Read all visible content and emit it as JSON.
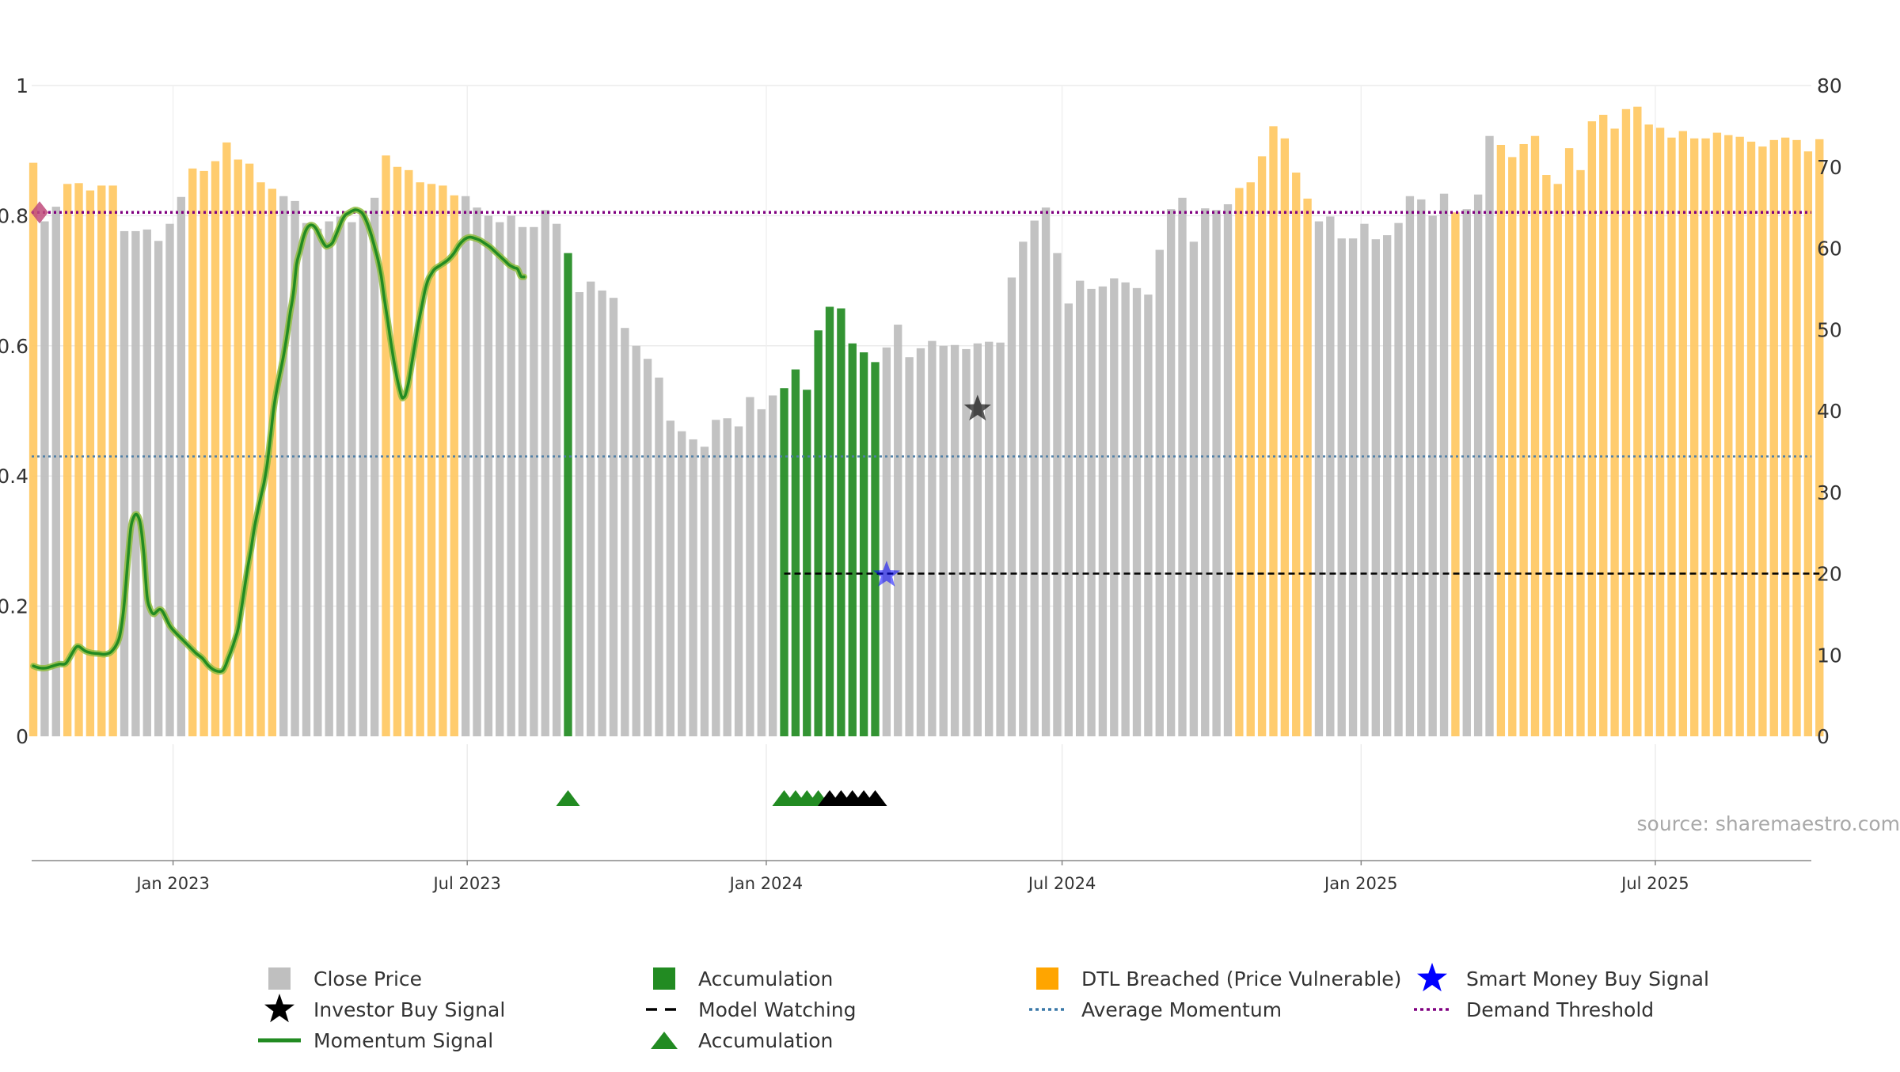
{
  "chart_data": {
    "type": "bar",
    "x_start": "2022-10-07",
    "x_interval_days": 7,
    "x_tick_labels": [
      {
        "date": "2023-01-01",
        "label": "Jan 2023"
      },
      {
        "date": "2023-07-01",
        "label": "Jul 2023"
      },
      {
        "date": "2024-01-01",
        "label": "Jan 2024"
      },
      {
        "date": "2024-07-01",
        "label": "Jul 2024"
      },
      {
        "date": "2025-01-01",
        "label": "Jan 2025"
      },
      {
        "date": "2025-07-01",
        "label": "Jul 2025"
      }
    ],
    "x_range": [
      "2022-10-06",
      "2025-10-05"
    ],
    "y_left_ticks": [
      "0",
      "0.2",
      "0.4",
      "0.6",
      "0.8",
      "1"
    ],
    "y_left_range": [
      0,
      1
    ],
    "y_right_ticks": [
      "0",
      "10",
      "20",
      "30",
      "40",
      "50",
      "60",
      "70",
      "80"
    ],
    "y_right_range": [
      0,
      80
    ],
    "grid": true,
    "average_momentum": 0.43,
    "demand_threshold": 0.805,
    "bars": {
      "values": [
        70.5,
        63.3,
        65.1,
        67.9,
        68.0,
        67.1,
        67.7,
        67.7,
        62.1,
        62.1,
        62.3,
        60.9,
        63.0,
        66.3,
        69.8,
        69.5,
        70.7,
        73.0,
        70.9,
        70.4,
        68.1,
        67.3,
        66.4,
        65.8,
        63.1,
        62.4,
        63.3,
        63.9,
        63.2,
        64.6,
        66.2,
        71.4,
        70.0,
        69.6,
        68.1,
        67.9,
        67.7,
        66.5,
        66.4,
        65.0,
        64.0,
        63.2,
        64.0,
        62.6,
        62.6,
        64.7,
        63.0,
        59.4,
        54.6,
        55.9,
        54.8,
        53.9,
        50.2,
        48.0,
        46.4,
        44.1,
        38.8,
        37.5,
        36.5,
        35.6,
        38.9,
        39.1,
        38.1,
        41.7,
        40.2,
        41.9,
        42.8,
        45.1,
        42.6,
        49.9,
        52.8,
        52.6,
        48.3,
        47.2,
        46.0,
        47.8,
        50.6,
        46.6,
        47.7,
        48.6,
        48.0,
        48.1,
        47.6,
        48.3,
        48.5,
        48.4,
        56.4,
        60.8,
        63.4,
        65.0,
        59.4,
        53.2,
        56.0,
        55.0,
        55.3,
        56.3,
        55.8,
        55.1,
        54.3,
        59.8,
        64.8,
        66.2,
        60.8,
        64.9,
        64.7,
        65.4,
        67.4,
        68.1,
        71.3,
        75.0,
        73.5,
        69.3,
        66.1,
        63.3,
        63.9,
        61.2,
        61.2,
        63.0,
        61.1,
        61.6,
        63.1,
        66.4,
        66.0,
        64.0,
        66.7,
        64.4,
        64.8,
        66.6,
        73.8,
        72.7,
        71.2,
        72.8,
        73.8,
        69.0,
        67.9,
        72.3,
        69.6,
        75.6,
        76.4,
        74.7,
        77.1,
        77.4,
        75.2,
        74.8,
        73.6,
        74.4,
        73.5,
        73.5,
        74.2,
        73.9,
        73.7,
        73.1,
        72.5,
        73.3,
        73.6,
        73.3,
        71.9,
        73.4
      ],
      "state": [
        "D",
        "C",
        "C",
        "D",
        "D",
        "D",
        "D",
        "D",
        "C",
        "C",
        "C",
        "C",
        "C",
        "C",
        "D",
        "D",
        "D",
        "D",
        "D",
        "D",
        "D",
        "D",
        "C",
        "C",
        "C",
        "C",
        "C",
        "C",
        "C",
        "C",
        "C",
        "D",
        "D",
        "D",
        "D",
        "D",
        "D",
        "D",
        "C",
        "C",
        "C",
        "C",
        "C",
        "C",
        "C",
        "C",
        "C",
        "A",
        "C",
        "C",
        "C",
        "C",
        "C",
        "C",
        "C",
        "C",
        "C",
        "C",
        "C",
        "C",
        "C",
        "C",
        "C",
        "C",
        "C",
        "C",
        "A",
        "A",
        "A",
        "A",
        "A",
        "A",
        "A",
        "A",
        "A",
        "C",
        "C",
        "C",
        "C",
        "C",
        "C",
        "C",
        "C",
        "C",
        "C",
        "C",
        "C",
        "C",
        "C",
        "C",
        "C",
        "C",
        "C",
        "C",
        "C",
        "C",
        "C",
        "C",
        "C",
        "C",
        "C",
        "C",
        "C",
        "C",
        "C",
        "C",
        "D",
        "D",
        "D",
        "D",
        "D",
        "D",
        "D",
        "C",
        "C",
        "C",
        "C",
        "C",
        "C",
        "C",
        "C",
        "C",
        "C",
        "C",
        "C",
        "D",
        "C",
        "C",
        "C",
        "D",
        "D",
        "D",
        "D",
        "D",
        "D",
        "D",
        "D",
        "D",
        "D",
        "D",
        "D",
        "D",
        "D",
        "D",
        "D",
        "D",
        "D",
        "D",
        "D",
        "D",
        "D",
        "D",
        "D",
        "D",
        "D",
        "D",
        "D",
        "D",
        "D",
        "D"
      ]
    },
    "momentum": [
      [
        0,
        0.108
      ],
      [
        4,
        0.105
      ],
      [
        8,
        0.105
      ],
      [
        12,
        0.108
      ],
      [
        16,
        0.111
      ],
      [
        20,
        0.112
      ],
      [
        24,
        0.128
      ],
      [
        26,
        0.136
      ],
      [
        28,
        0.138
      ],
      [
        32,
        0.131
      ],
      [
        36,
        0.128
      ],
      [
        40,
        0.127
      ],
      [
        44,
        0.126
      ],
      [
        48,
        0.13
      ],
      [
        52,
        0.145
      ],
      [
        54,
        0.165
      ],
      [
        56,
        0.205
      ],
      [
        58,
        0.265
      ],
      [
        60,
        0.32
      ],
      [
        62,
        0.338
      ],
      [
        64,
        0.34
      ],
      [
        66,
        0.325
      ],
      [
        68,
        0.28
      ],
      [
        70,
        0.215
      ],
      [
        72,
        0.195
      ],
      [
        74,
        0.188
      ],
      [
        76,
        0.192
      ],
      [
        78,
        0.195
      ],
      [
        80,
        0.19
      ],
      [
        84,
        0.17
      ],
      [
        88,
        0.158
      ],
      [
        92,
        0.148
      ],
      [
        96,
        0.138
      ],
      [
        100,
        0.128
      ],
      [
        104,
        0.12
      ],
      [
        108,
        0.108
      ],
      [
        112,
        0.101
      ],
      [
        116,
        0.1
      ],
      [
        118,
        0.107
      ],
      [
        120,
        0.12
      ],
      [
        122,
        0.133
      ],
      [
        124,
        0.148
      ],
      [
        126,
        0.165
      ],
      [
        128,
        0.195
      ],
      [
        130,
        0.228
      ],
      [
        132,
        0.26
      ],
      [
        134,
        0.288
      ],
      [
        136,
        0.32
      ],
      [
        138,
        0.345
      ],
      [
        140,
        0.368
      ],
      [
        142,
        0.39
      ],
      [
        144,
        0.42
      ],
      [
        146,
        0.462
      ],
      [
        148,
        0.505
      ],
      [
        150,
        0.535
      ],
      [
        152,
        0.56
      ],
      [
        154,
        0.585
      ],
      [
        156,
        0.615
      ],
      [
        158,
        0.65
      ],
      [
        160,
        0.68
      ],
      [
        162,
        0.725
      ],
      [
        164,
        0.745
      ],
      [
        166,
        0.765
      ],
      [
        168,
        0.779
      ],
      [
        170,
        0.785
      ],
      [
        172,
        0.785
      ],
      [
        174,
        0.78
      ],
      [
        176,
        0.77
      ],
      [
        178,
        0.76
      ],
      [
        180,
        0.753
      ],
      [
        182,
        0.754
      ],
      [
        184,
        0.758
      ],
      [
        186,
        0.769
      ],
      [
        188,
        0.781
      ],
      [
        190,
        0.793
      ],
      [
        192,
        0.801
      ],
      [
        194,
        0.804
      ],
      [
        196,
        0.807
      ],
      [
        198,
        0.809
      ],
      [
        200,
        0.808
      ],
      [
        202,
        0.805
      ],
      [
        204,
        0.797
      ],
      [
        206,
        0.785
      ],
      [
        208,
        0.77
      ],
      [
        210,
        0.752
      ],
      [
        212,
        0.733
      ],
      [
        214,
        0.708
      ],
      [
        216,
        0.672
      ],
      [
        218,
        0.64
      ],
      [
        220,
        0.606
      ],
      [
        222,
        0.575
      ],
      [
        224,
        0.548
      ],
      [
        226,
        0.527
      ],
      [
        227,
        0.52
      ],
      [
        228,
        0.521
      ],
      [
        229,
        0.525
      ],
      [
        231,
        0.545
      ],
      [
        233,
        0.575
      ],
      [
        235,
        0.605
      ],
      [
        237,
        0.635
      ],
      [
        239,
        0.66
      ],
      [
        241,
        0.685
      ],
      [
        243,
        0.702
      ],
      [
        245,
        0.711
      ],
      [
        247,
        0.718
      ],
      [
        250,
        0.723
      ],
      [
        253,
        0.728
      ],
      [
        256,
        0.734
      ],
      [
        259,
        0.743
      ],
      [
        262,
        0.755
      ],
      [
        265,
        0.763
      ],
      [
        267,
        0.766
      ],
      [
        269,
        0.767
      ],
      [
        272,
        0.765
      ],
      [
        275,
        0.762
      ],
      [
        278,
        0.757
      ],
      [
        281,
        0.752
      ],
      [
        284,
        0.745
      ],
      [
        287,
        0.738
      ],
      [
        290,
        0.731
      ],
      [
        293,
        0.724
      ],
      [
        296,
        0.72
      ],
      [
        298,
        0.718
      ],
      [
        300,
        0.707
      ],
      [
        302,
        0.706
      ]
    ],
    "markers": {
      "accumulation_triangles": [
        47,
        66,
        67,
        68,
        69
      ],
      "model_watching_triangles": [
        70,
        71,
        72,
        73,
        74
      ],
      "smart_money_buy_signal": {
        "index": 75,
        "y": 0.248
      },
      "investor_buy_signal": {
        "index": 83,
        "y": 0.503
      },
      "model_watching_line": {
        "start": 66,
        "end": 157,
        "y": 0.25
      },
      "demand_marker_y": 0.805
    },
    "colors": {
      "close_price": "#bfbfbf",
      "accumulation": "#228b22",
      "dtl_breached": "#ffc966",
      "momentum": "#228b22",
      "momentum_halo": "#8fbc3f",
      "average_momentum": "#4f7fa6",
      "demand_threshold": "#800080",
      "smart_money": "#0000ff",
      "investor": "#000000",
      "model_watching": "#000000"
    },
    "source_text": "source: sharemaestro.com",
    "legend": {
      "placement": "bottom",
      "items": [
        {
          "label": "Close Price",
          "symbol": "square",
          "color": "#bfbfbf"
        },
        {
          "label": "Accumulation",
          "symbol": "square",
          "color": "#228b22"
        },
        {
          "label": "DTL Breached (Price Vulnerable)",
          "symbol": "square",
          "color": "#ffa500"
        },
        {
          "label": "Smart Money Buy Signal",
          "symbol": "star",
          "color": "#0000ff"
        },
        {
          "label": "Investor Buy Signal",
          "symbol": "star",
          "color": "#000000"
        },
        {
          "label": "Model Watching",
          "symbol": "dash",
          "color": "#000000"
        },
        {
          "label": "Average Momentum",
          "symbol": "dotted-line",
          "color": "#3a78a8"
        },
        {
          "label": "Demand Threshold",
          "symbol": "dotted-line",
          "color": "#800080"
        },
        {
          "label": "Momentum Signal",
          "symbol": "line",
          "color": "#228b22"
        },
        {
          "label": "Accumulation",
          "symbol": "triangle",
          "color": "#228b22"
        }
      ]
    }
  }
}
